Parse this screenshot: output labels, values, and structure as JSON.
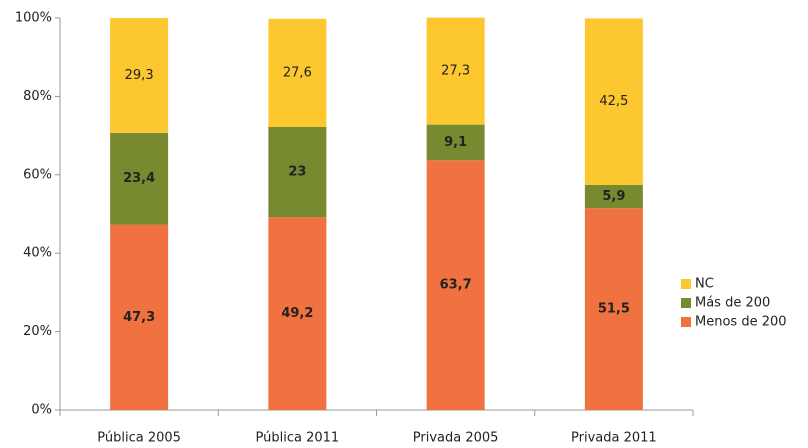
{
  "chart_data": {
    "type": "stacked_bar",
    "categories": [
      "Pública 2005",
      "Pública 2011",
      "Privada 2005",
      "Privada 2011"
    ],
    "series": [
      {
        "name": "Menos de 200",
        "color": "#f07240",
        "values": [
          47.3,
          49.2,
          63.7,
          51.5
        ],
        "value_labels": [
          "47,3",
          "49,2",
          "63,7",
          "51,5"
        ]
      },
      {
        "name": "Más de 200",
        "color": "#788a30",
        "values": [
          23.4,
          23,
          9.1,
          5.9
        ],
        "value_labels": [
          "23,4",
          "23",
          "9,1",
          "5,9"
        ]
      },
      {
        "name": "NC",
        "color": "#fdc82f",
        "values": [
          29.3,
          27.6,
          27.3,
          42.5
        ],
        "value_labels": [
          "29,3",
          "27,6",
          "27,3",
          "42,5"
        ]
      }
    ],
    "ylim": [
      0,
      100
    ],
    "yticks": [
      {
        "value": 0,
        "label": "0%"
      },
      {
        "value": 20,
        "label": "20%"
      },
      {
        "value": 40,
        "label": "40%"
      },
      {
        "value": 60,
        "label": "60%"
      },
      {
        "value": 80,
        "label": "80%"
      },
      {
        "value": 100,
        "label": "100%"
      }
    ],
    "legend": "right"
  }
}
